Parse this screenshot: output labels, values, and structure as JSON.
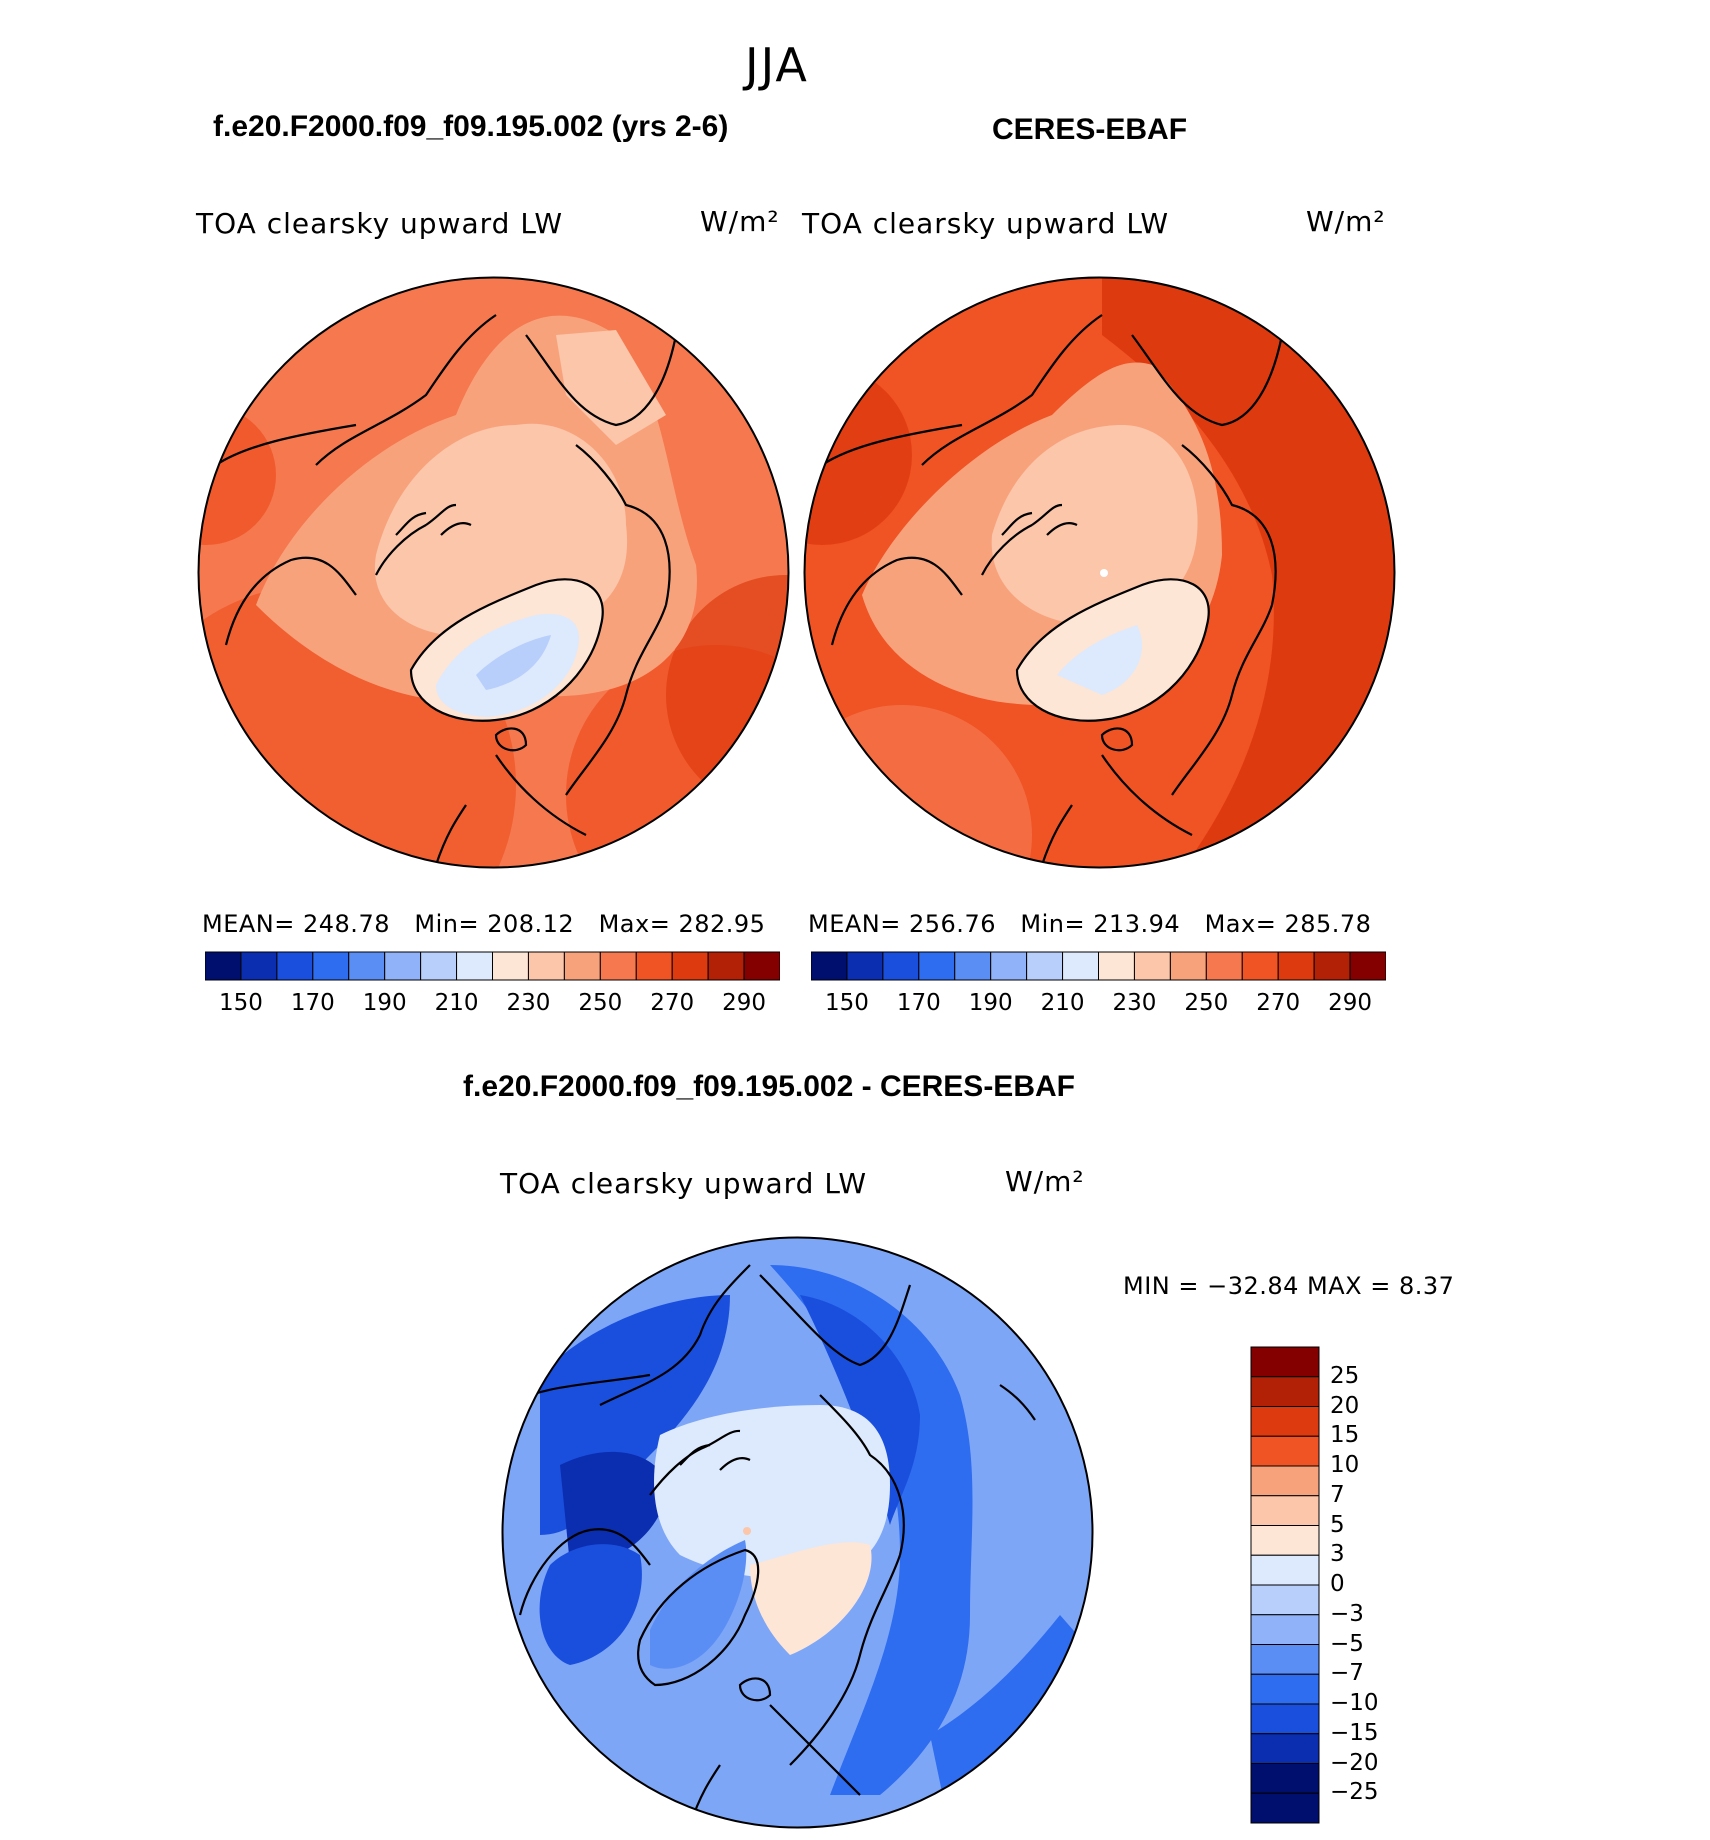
{
  "season": "JJA",
  "panels": {
    "model": {
      "title": "f.e20.F2000.f09_f09.195.002 (yrs 2-6)",
      "var_label": "TOA clearsky upward LW",
      "units": "W/m²",
      "stats": {
        "mean_label": "MEAN=",
        "mean": "248.78",
        "min_label": "Min=",
        "min": "208.12",
        "max_label": "Max=",
        "max": "282.95"
      }
    },
    "obs": {
      "title": "CERES-EBAF",
      "var_label": "TOA clearsky upward LW",
      "units": "W/m²",
      "stats": {
        "mean_label": "MEAN=",
        "mean": "256.76",
        "min_label": "Min=",
        "min": "213.94",
        "max_label": "Max=",
        "max": "285.78"
      }
    },
    "diff": {
      "title": "f.e20.F2000.f09_f09.195.002 - CERES-EBAF",
      "var_label": "TOA clearsky upward LW",
      "units": "W/m²",
      "minmax": "MIN = −32.84  MAX =    8.37"
    }
  },
  "colors": {
    "abs_scale": [
      "#000e6e",
      "#0b2db0",
      "#1a4fde",
      "#2e6cf0",
      "#5b8ef5",
      "#8fb2f8",
      "#b8cefb",
      "#dde9fc",
      "#fde6d6",
      "#fbc6aa",
      "#f8a27c",
      "#f5784f",
      "#f05324",
      "#de3a10",
      "#b22006",
      "#840000"
    ],
    "diff_scale": [
      "#000e6e",
      "#0b2db0",
      "#1a4fde",
      "#2e6cf0",
      "#5b8ef5",
      "#8fb2f8",
      "#b8cefb",
      "#dde9fc",
      "#fde6d6",
      "#fbc6aa",
      "#f8a27c",
      "#f05324",
      "#de3a10",
      "#b22006",
      "#840000"
    ]
  },
  "chart_data": [
    {
      "type": "heatmap",
      "title": "f.e20.F2000.f09_f09.195.002 (yrs 2-6)",
      "projection": "north polar stereographic",
      "colorbar_ticks": [
        "150",
        "170",
        "190",
        "210",
        "230",
        "250",
        "270",
        "290"
      ],
      "levels": [
        150,
        160,
        170,
        180,
        190,
        200,
        210,
        220,
        230,
        240,
        250,
        260,
        270,
        280,
        290
      ],
      "mean": 248.78,
      "min": 208.12,
      "max": 282.95
    },
    {
      "type": "heatmap",
      "title": "CERES-EBAF",
      "projection": "north polar stereographic",
      "colorbar_ticks": [
        "150",
        "170",
        "190",
        "210",
        "230",
        "250",
        "270",
        "290"
      ],
      "levels": [
        150,
        160,
        170,
        180,
        190,
        200,
        210,
        220,
        230,
        240,
        250,
        260,
        270,
        280,
        290
      ],
      "mean": 256.76,
      "min": 213.94,
      "max": 285.78
    },
    {
      "type": "heatmap",
      "title": "f.e20.F2000.f09_f09.195.002 - CERES-EBAF",
      "projection": "north polar stereographic",
      "colorbar_ticks": [
        "25",
        "20",
        "15",
        "10",
        "7",
        "5",
        "3",
        "0",
        "−3",
        "−5",
        "−7",
        "−10",
        "−15",
        "−20",
        "−25"
      ],
      "levels": [
        -25,
        -20,
        -15,
        -10,
        -7,
        -5,
        -3,
        0,
        3,
        5,
        7,
        10,
        15,
        20,
        25
      ],
      "min": -32.84,
      "max": 8.37
    }
  ]
}
